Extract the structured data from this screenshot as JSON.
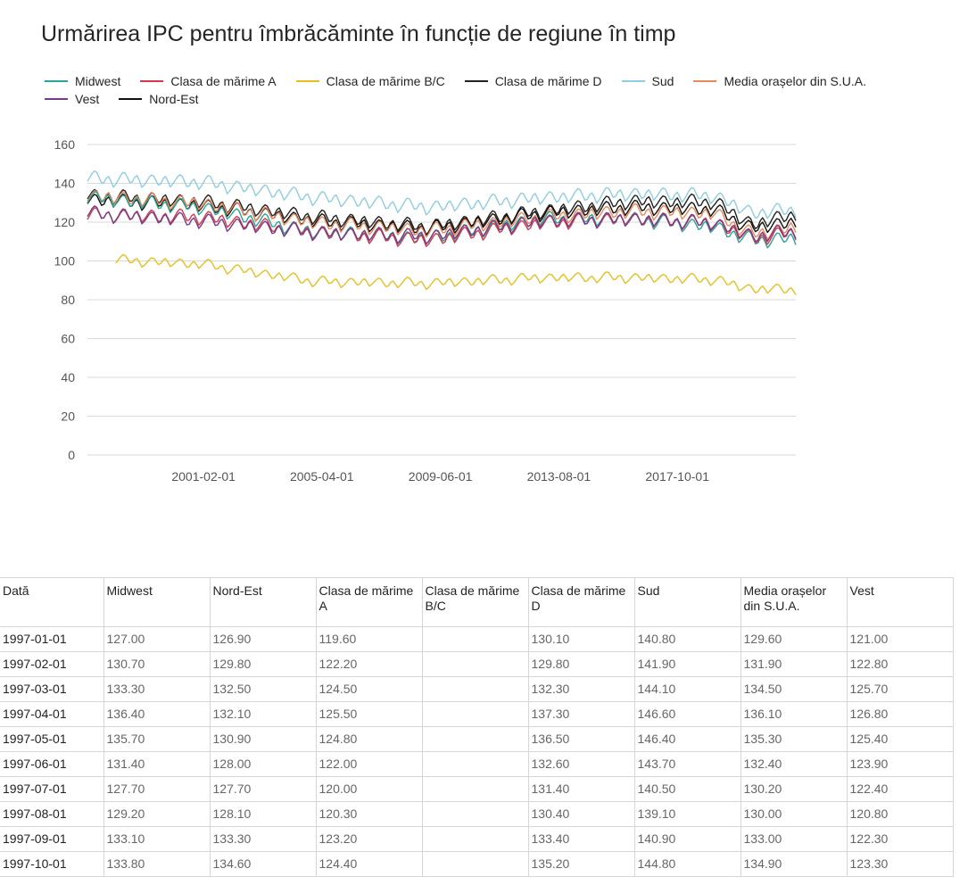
{
  "title": "Urmărirea IPC pentru îmbrăcăminte în funcție de regiune în timp",
  "colors": {
    "Midwest": "#2aa59b",
    "Clasa de mărime A": "#d33a4a",
    "Clasa de mărime B/C": "#e6c022",
    "Clasa de mărime D": "#222222",
    "Sud": "#8fcde0",
    "Media orașelor din S.U.A.": "#ea8a5a",
    "Vest": "#7a3a88",
    "Nord-Est": "#111111"
  },
  "legend": [
    "Midwest",
    "Clasa de mărime A",
    "Clasa de mărime B/C",
    "Clasa de mărime D",
    "Sud",
    "Media orașelor din S.U.A.",
    "Vest",
    "Nord-Est"
  ],
  "chart_data": {
    "type": "line",
    "title": "Urmărirea IPC pentru îmbrăcăminte în funcție de regiune în timp",
    "xlabel": "",
    "ylabel": "",
    "ylim": [
      0,
      160
    ],
    "yticks": [
      0,
      20,
      40,
      60,
      80,
      100,
      120,
      140,
      160
    ],
    "xticks": [
      "2001-02-01",
      "2005-04-01",
      "2009-06-01",
      "2013-08-01",
      "2017-10-01"
    ],
    "xrange": [
      "1997-01-01",
      "2021-12-01"
    ],
    "grid": "horizontal",
    "legend_position": "top",
    "pattern": "monthly seasonal oscillation, amplitude about 4",
    "series": [
      {
        "name": "Sud",
        "start": "1997-01-01",
        "trend": [
          [
            "1997-01-01",
            142
          ],
          [
            "2001-01-01",
            140
          ],
          [
            "2005-01-01",
            132
          ],
          [
            "2009-01-01",
            127
          ],
          [
            "2013-01-01",
            132
          ],
          [
            "2016-01-01",
            134
          ],
          [
            "2019-01-01",
            133
          ],
          [
            "2020-06-01",
            124
          ],
          [
            "2021-12-01",
            126
          ]
        ]
      },
      {
        "name": "Clasa de mărime D",
        "start": "1997-01-01",
        "trend": [
          [
            "1997-01-01",
            133
          ],
          [
            "2001-01-01",
            130
          ],
          [
            "2005-01-01",
            122
          ],
          [
            "2009-01-01",
            117
          ],
          [
            "2013-01-01",
            125
          ],
          [
            "2016-01-01",
            130
          ],
          [
            "2019-01-01",
            130
          ],
          [
            "2020-06-01",
            118
          ],
          [
            "2021-12-01",
            124
          ]
        ]
      },
      {
        "name": "Nord-Est",
        "start": "1997-01-01",
        "trend": [
          [
            "1997-01-01",
            131
          ],
          [
            "2001-01-01",
            128
          ],
          [
            "2005-01-01",
            120
          ],
          [
            "2009-01-01",
            116
          ],
          [
            "2013-01-01",
            124
          ],
          [
            "2016-01-01",
            127
          ],
          [
            "2019-01-01",
            126
          ],
          [
            "2020-06-01",
            116
          ],
          [
            "2021-12-01",
            120
          ]
        ]
      },
      {
        "name": "Media orașelor din S.U.A.",
        "start": "1997-01-01",
        "trend": [
          [
            "1997-01-01",
            133
          ],
          [
            "2001-01-01",
            129
          ],
          [
            "2005-01-01",
            119
          ],
          [
            "2009-01-01",
            115
          ],
          [
            "2013-01-01",
            122
          ],
          [
            "2016-01-01",
            125
          ],
          [
            "2019-01-01",
            124
          ],
          [
            "2020-06-01",
            113
          ],
          [
            "2021-12-01",
            117
          ]
        ]
      },
      {
        "name": "Midwest",
        "start": "1997-01-01",
        "trend": [
          [
            "1997-01-01",
            132
          ],
          [
            "2001-01-01",
            127
          ],
          [
            "2005-01-01",
            114
          ],
          [
            "2009-01-01",
            111
          ],
          [
            "2013-01-01",
            121
          ],
          [
            "2016-01-01",
            121
          ],
          [
            "2019-01-01",
            117
          ],
          [
            "2020-06-01",
            110
          ],
          [
            "2021-12-01",
            111
          ]
        ]
      },
      {
        "name": "Clasa de mărime A",
        "start": "1997-01-01",
        "trend": [
          [
            "1997-01-01",
            123
          ],
          [
            "2001-01-01",
            122
          ],
          [
            "2005-01-01",
            114
          ],
          [
            "2009-01-01",
            110
          ],
          [
            "2013-01-01",
            119
          ],
          [
            "2016-01-01",
            121
          ],
          [
            "2019-01-01",
            119
          ],
          [
            "2020-06-01",
            111
          ],
          [
            "2021-12-01",
            114
          ]
        ]
      },
      {
        "name": "Vest",
        "start": "1997-01-01",
        "trend": [
          [
            "1997-01-01",
            124
          ],
          [
            "2001-01-01",
            120
          ],
          [
            "2005-01-01",
            114
          ],
          [
            "2009-01-01",
            112
          ],
          [
            "2013-01-01",
            120
          ],
          [
            "2016-01-01",
            121
          ],
          [
            "2019-01-01",
            119
          ],
          [
            "2020-06-01",
            112
          ],
          [
            "2021-12-01",
            115
          ]
        ]
      },
      {
        "name": "Clasa de mărime B/C",
        "start": "1998-01-01",
        "trend": [
          [
            "1998-01-01",
            100
          ],
          [
            "2001-01-01",
            98
          ],
          [
            "2005-01-01",
            89
          ],
          [
            "2009-01-01",
            88
          ],
          [
            "2013-01-01",
            91
          ],
          [
            "2016-01-01",
            91
          ],
          [
            "2019-01-01",
            90
          ],
          [
            "2020-06-01",
            85
          ],
          [
            "2021-12-01",
            85
          ]
        ]
      }
    ]
  },
  "table": {
    "headers": [
      "Dată",
      "Midwest",
      "Nord-Est",
      "Clasa de mărime A",
      "Clasa de mărime B/C",
      "Clasa de mărime D",
      "Sud",
      "Media orașelor din S.U.A.",
      "Vest"
    ],
    "rows": [
      [
        "1997-01-01",
        "127.00",
        "126.90",
        "119.60",
        "",
        "130.10",
        "140.80",
        "129.60",
        "121.00"
      ],
      [
        "1997-02-01",
        "130.70",
        "129.80",
        "122.20",
        "",
        "129.80",
        "141.90",
        "131.90",
        "122.80"
      ],
      [
        "1997-03-01",
        "133.30",
        "132.50",
        "124.50",
        "",
        "132.30",
        "144.10",
        "134.50",
        "125.70"
      ],
      [
        "1997-04-01",
        "136.40",
        "132.10",
        "125.50",
        "",
        "137.30",
        "146.60",
        "136.10",
        "126.80"
      ],
      [
        "1997-05-01",
        "135.70",
        "130.90",
        "124.80",
        "",
        "136.50",
        "146.40",
        "135.30",
        "125.40"
      ],
      [
        "1997-06-01",
        "131.40",
        "128.00",
        "122.00",
        "",
        "132.60",
        "143.70",
        "132.40",
        "123.90"
      ],
      [
        "1997-07-01",
        "127.70",
        "127.70",
        "120.00",
        "",
        "131.40",
        "140.50",
        "130.20",
        "122.40"
      ],
      [
        "1997-08-01",
        "129.20",
        "128.10",
        "120.30",
        "",
        "130.40",
        "139.10",
        "130.00",
        "120.80"
      ],
      [
        "1997-09-01",
        "133.10",
        "133.30",
        "123.20",
        "",
        "133.40",
        "140.90",
        "133.00",
        "122.30"
      ],
      [
        "1997-10-01",
        "133.80",
        "134.60",
        "124.40",
        "",
        "135.20",
        "144.80",
        "134.90",
        "123.30"
      ]
    ]
  }
}
